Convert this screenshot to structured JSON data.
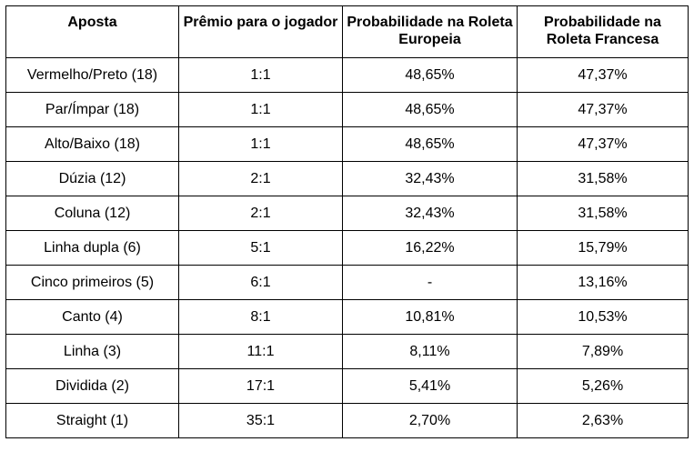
{
  "table": {
    "headers": [
      "Aposta",
      "Prêmio para o jogador",
      "Probabilidade na Roleta Europeia",
      "Probabilidade na Roleta Francesa"
    ],
    "rows": [
      [
        "Vermelho/Preto (18)",
        "1:1",
        "48,65%",
        "47,37%"
      ],
      [
        "Par/Ímpar (18)",
        "1:1",
        "48,65%",
        "47,37%"
      ],
      [
        "Alto/Baixo (18)",
        "1:1",
        "48,65%",
        "47,37%"
      ],
      [
        "Dúzia (12)",
        "2:1",
        "32,43%",
        "31,58%"
      ],
      [
        "Coluna (12)",
        "2:1",
        "32,43%",
        "31,58%"
      ],
      [
        "Linha dupla (6)",
        "5:1",
        "16,22%",
        "15,79%"
      ],
      [
        "Cinco primeiros (5)",
        "6:1",
        "-",
        "13,16%"
      ],
      [
        "Canto (4)",
        "8:1",
        "10,81%",
        "10,53%"
      ],
      [
        "Linha (3)",
        "11:1",
        "8,11%",
        "7,89%"
      ],
      [
        "Dividida (2)",
        "17:1",
        "5,41%",
        "5,26%"
      ],
      [
        "Straight (1)",
        "35:1",
        "2,70%",
        "2,63%"
      ]
    ]
  }
}
